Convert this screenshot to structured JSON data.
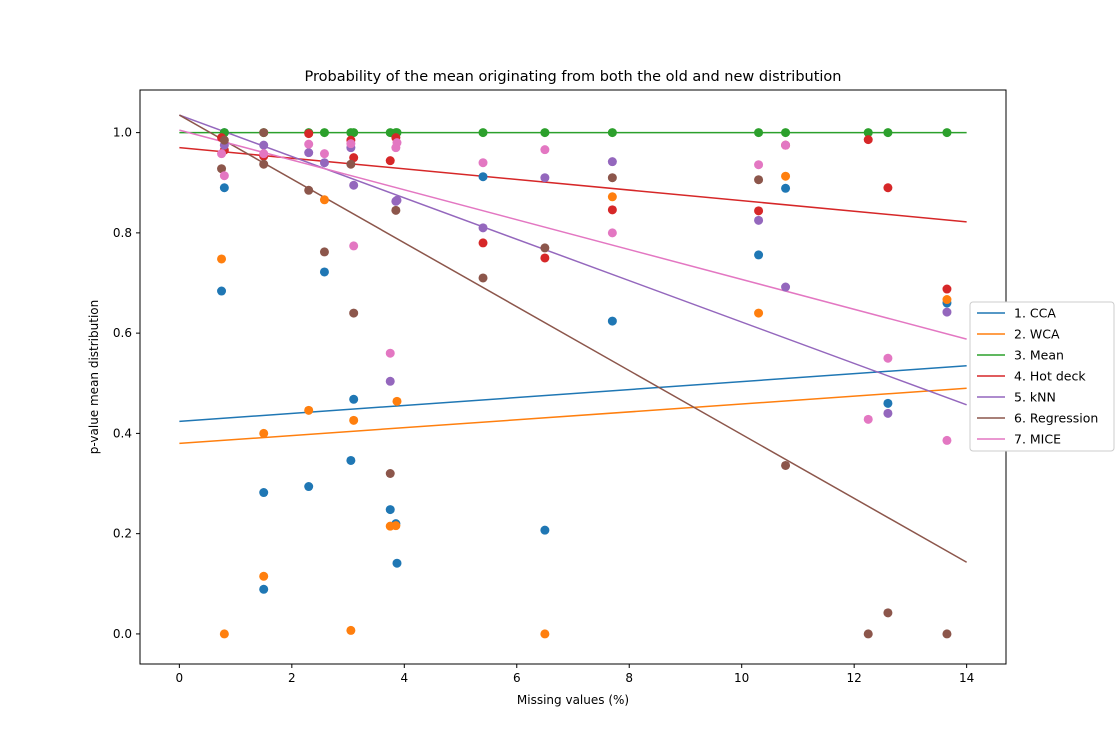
{
  "chart_data": {
    "type": "scatter",
    "title": "Probability of the mean originating from both the old and new distribution",
    "xlabel": "Missing values (%)",
    "ylabel": "p-value mean distribution",
    "xlim": [
      -0.7,
      14.7
    ],
    "ylim": [
      -0.06,
      1.085
    ],
    "xticks": [
      0,
      2,
      4,
      6,
      8,
      10,
      12,
      14
    ],
    "yticks": [
      0.0,
      0.2,
      0.4,
      0.6,
      0.8,
      1.0
    ],
    "xtick_labels": [
      "0",
      "2",
      "4",
      "6",
      "8",
      "10",
      "12",
      "14"
    ],
    "ytick_labels": [
      "0.0",
      "0.2",
      "0.4",
      "0.6",
      "0.8",
      "1.0"
    ],
    "grid": false,
    "legend_position": "center-right-outside",
    "series": [
      {
        "name": "1. CCA",
        "color": "#1f77b4",
        "points": [
          [
            0.8,
            1.0
          ],
          [
            0.8,
            0.89
          ],
          [
            0.75,
            0.684
          ],
          [
            1.5,
            0.282
          ],
          [
            1.5,
            0.089
          ],
          [
            2.3,
            0.294
          ],
          [
            2.58,
            0.722
          ],
          [
            3.05,
            0.346
          ],
          [
            3.1,
            0.468
          ],
          [
            3.75,
            0.248
          ],
          [
            3.85,
            0.22
          ],
          [
            3.87,
            0.141
          ],
          [
            5.4,
            0.912
          ],
          [
            6.5,
            0.207
          ],
          [
            7.7,
            0.624
          ],
          [
            10.3,
            0.756
          ],
          [
            10.78,
            0.889
          ],
          [
            12.6,
            0.46
          ],
          [
            13.65,
            0.66
          ]
        ],
        "fit": [
          [
            0,
            0.424
          ],
          [
            14,
            0.535
          ]
        ]
      },
      {
        "name": "2. WCA",
        "color": "#ff7f0e",
        "points": [
          [
            0.75,
            0.748
          ],
          [
            0.8,
            0.0
          ],
          [
            1.5,
            0.4
          ],
          [
            1.5,
            0.115
          ],
          [
            2.3,
            0.446
          ],
          [
            2.58,
            0.866
          ],
          [
            3.05,
            0.007
          ],
          [
            3.1,
            0.426
          ],
          [
            3.75,
            0.215
          ],
          [
            3.85,
            0.216
          ],
          [
            3.87,
            0.464
          ],
          [
            6.5,
            0.0
          ],
          [
            7.7,
            0.872
          ],
          [
            10.3,
            0.64
          ],
          [
            10.78,
            0.913
          ],
          [
            13.65,
            0.667
          ]
        ],
        "fit": [
          [
            0,
            0.38
          ],
          [
            14,
            0.49
          ]
        ]
      },
      {
        "name": "3. Mean",
        "color": "#2ca02c",
        "points": [
          [
            0.8,
            1.0
          ],
          [
            1.5,
            1.0
          ],
          [
            2.3,
            1.0
          ],
          [
            2.58,
            1.0
          ],
          [
            3.05,
            1.0
          ],
          [
            3.1,
            1.0
          ],
          [
            3.75,
            1.0
          ],
          [
            3.85,
            1.0
          ],
          [
            3.87,
            1.0
          ],
          [
            5.4,
            1.0
          ],
          [
            6.5,
            1.0
          ],
          [
            7.7,
            1.0
          ],
          [
            10.3,
            1.0
          ],
          [
            10.78,
            1.0
          ],
          [
            12.25,
            1.0
          ],
          [
            12.6,
            1.0
          ],
          [
            13.65,
            1.0
          ]
        ],
        "fit": [
          [
            0,
            1.0
          ],
          [
            14,
            1.0
          ]
        ]
      },
      {
        "name": "4. Hot deck",
        "color": "#d62728",
        "points": [
          [
            0.8,
            0.965
          ],
          [
            0.75,
            0.99
          ],
          [
            1.5,
            0.953
          ],
          [
            2.3,
            0.998
          ],
          [
            3.05,
            0.985
          ],
          [
            3.1,
            0.95
          ],
          [
            3.75,
            0.944
          ],
          [
            3.85,
            0.99
          ],
          [
            5.4,
            0.78
          ],
          [
            6.5,
            0.75
          ],
          [
            7.7,
            0.846
          ],
          [
            10.3,
            0.844
          ],
          [
            10.78,
            0.975
          ],
          [
            12.25,
            0.986
          ],
          [
            12.6,
            0.89
          ],
          [
            13.65,
            0.688
          ]
        ],
        "fit": [
          [
            0,
            0.97
          ],
          [
            14,
            0.822
          ]
        ]
      },
      {
        "name": "5. kNN",
        "color": "#9467bd",
        "points": [
          [
            0.8,
            0.975
          ],
          [
            1.5,
            0.975
          ],
          [
            2.3,
            0.96
          ],
          [
            2.58,
            0.94
          ],
          [
            3.05,
            0.97
          ],
          [
            3.1,
            0.895
          ],
          [
            3.75,
            0.504
          ],
          [
            3.85,
            0.863
          ],
          [
            3.87,
            0.865
          ],
          [
            5.4,
            0.81
          ],
          [
            6.5,
            0.91
          ],
          [
            7.7,
            0.942
          ],
          [
            10.3,
            0.825
          ],
          [
            10.78,
            0.692
          ],
          [
            12.6,
            0.44
          ],
          [
            13.65,
            0.642
          ]
        ],
        "fit": [
          [
            0,
            1.035
          ],
          [
            14,
            0.457
          ]
        ]
      },
      {
        "name": "6. Regression",
        "color": "#8c564b",
        "points": [
          [
            0.75,
            0.928
          ],
          [
            0.8,
            0.985
          ],
          [
            1.5,
            1.0
          ],
          [
            1.5,
            0.937
          ],
          [
            2.3,
            0.885
          ],
          [
            2.58,
            0.762
          ],
          [
            3.05,
            0.937
          ],
          [
            3.1,
            0.64
          ],
          [
            3.75,
            0.32
          ],
          [
            3.85,
            0.845
          ],
          [
            5.4,
            0.71
          ],
          [
            6.5,
            0.77
          ],
          [
            7.7,
            0.91
          ],
          [
            10.3,
            0.906
          ],
          [
            10.78,
            0.336
          ],
          [
            12.25,
            0.0
          ],
          [
            12.6,
            0.042
          ],
          [
            13.65,
            0.0
          ]
        ],
        "fit": [
          [
            0,
            1.035
          ],
          [
            14,
            0.143
          ]
        ]
      },
      {
        "name": "7. MICE",
        "color": "#e377c2",
        "points": [
          [
            0.75,
            0.958
          ],
          [
            0.8,
            0.914
          ],
          [
            1.5,
            0.958
          ],
          [
            2.3,
            0.977
          ],
          [
            2.58,
            0.958
          ],
          [
            3.05,
            0.978
          ],
          [
            3.1,
            0.774
          ],
          [
            3.75,
            0.56
          ],
          [
            3.85,
            0.97
          ],
          [
            3.87,
            0.98
          ],
          [
            5.4,
            0.94
          ],
          [
            6.5,
            0.966
          ],
          [
            7.7,
            0.8
          ],
          [
            10.3,
            0.936
          ],
          [
            10.78,
            0.975
          ],
          [
            12.25,
            0.428
          ],
          [
            12.6,
            0.55
          ],
          [
            13.65,
            0.386
          ]
        ],
        "fit": [
          [
            0,
            1.005
          ],
          [
            14,
            0.588
          ]
        ]
      }
    ]
  }
}
